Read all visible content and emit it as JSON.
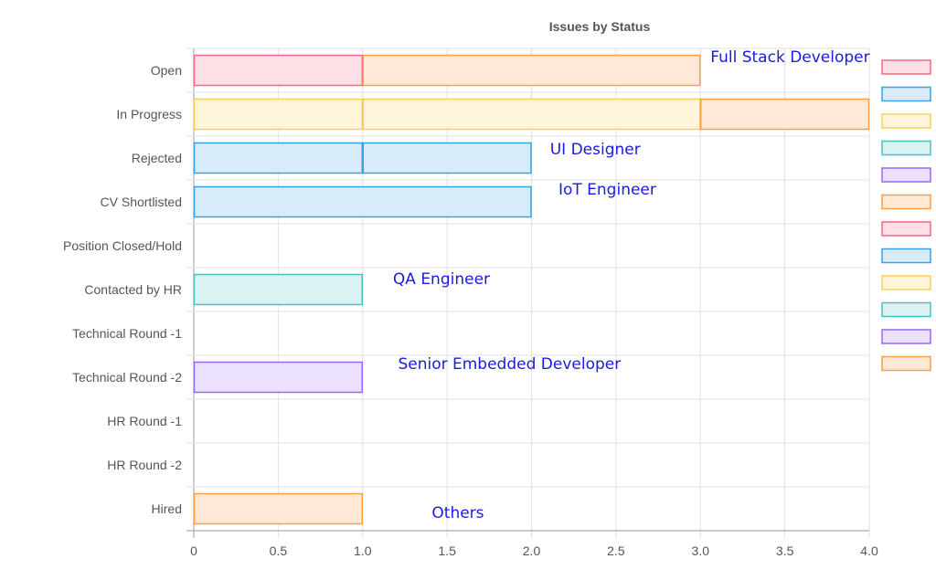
{
  "chart_data": {
    "type": "bar",
    "orientation": "horizontal",
    "stacked": true,
    "title": "Issues by Status",
    "categories": [
      "Open",
      "In Progress",
      "Rejected",
      "CV Shortlisted",
      "Position Closed/Hold",
      "Contacted by HR",
      "Technical Round -1",
      "Technical Round -2",
      "HR Round -1",
      "HR Round -2",
      "Hired"
    ],
    "x_ticks": [
      "0",
      "0.5",
      "1.0",
      "1.5",
      "2.0",
      "2.5",
      "3.0",
      "3.5",
      "4.0"
    ],
    "xlim": [
      0,
      4
    ],
    "grid": true,
    "legend_position": "right",
    "series": [
      {
        "fill": "#fde0e6",
        "stroke": "#ff6384",
        "values": [
          1,
          0,
          0,
          0,
          0,
          0,
          0,
          0,
          0,
          0,
          0
        ]
      },
      {
        "fill": "#d7ebf9",
        "stroke": "#36a2eb",
        "values": [
          0,
          0,
          1,
          2,
          0,
          0,
          0,
          0,
          0,
          0,
          0
        ]
      },
      {
        "fill": "#fff5db",
        "stroke": "#ffcd56",
        "values": [
          0,
          1,
          0,
          0,
          0,
          0,
          0,
          0,
          0,
          0,
          0
        ]
      },
      {
        "fill": "#dbf2f2",
        "stroke": "#4bc0c0",
        "values": [
          0,
          0,
          0,
          0,
          0,
          1,
          0,
          0,
          0,
          0,
          0
        ]
      },
      {
        "fill": "#ebe0ff",
        "stroke": "#9966ff",
        "values": [
          0,
          0,
          0,
          0,
          0,
          0,
          0,
          1,
          0,
          0,
          0
        ]
      },
      {
        "fill": "#ffe8d6",
        "stroke": "#ff9f40",
        "values": [
          0,
          0,
          0,
          0,
          0,
          0,
          0,
          0,
          0,
          0,
          1
        ]
      },
      {
        "fill": "#fde0e6",
        "stroke": "#ff6384",
        "values": [
          0,
          0,
          0,
          0,
          0,
          0,
          0,
          0,
          0,
          0,
          0
        ]
      },
      {
        "fill": "#d7ebf9",
        "stroke": "#36a2eb",
        "values": [
          0,
          0,
          1,
          0,
          0,
          0,
          0,
          0,
          0,
          0,
          0
        ]
      },
      {
        "fill": "#fff5db",
        "stroke": "#ffcd56",
        "values": [
          0,
          2,
          0,
          0,
          0,
          0,
          0,
          0,
          0,
          0,
          0
        ]
      },
      {
        "fill": "#dbf2f2",
        "stroke": "#4bc0c0",
        "values": [
          0,
          0,
          0,
          0,
          0,
          0,
          0,
          0,
          0,
          0,
          0
        ]
      },
      {
        "fill": "#ebe0ff",
        "stroke": "#9966ff",
        "values": [
          0,
          0,
          0,
          0,
          0,
          0,
          0,
          0,
          0,
          0,
          0
        ]
      },
      {
        "fill": "#ffe8d6",
        "stroke": "#ff9f40",
        "values": [
          2,
          1,
          0,
          0,
          0,
          0,
          0,
          0,
          0,
          0,
          0
        ]
      }
    ],
    "annotations": [
      {
        "text": "Full Stack Developer",
        "category": "Open",
        "x": 3.0,
        "dy": -9
      },
      {
        "text": "UI Designer",
        "category": "Rejected",
        "x": 2.05,
        "dy": -4
      },
      {
        "text": "IoT Engineer",
        "category": "CV Shortlisted",
        "x": 2.1,
        "dy": -8
      },
      {
        "text": "QA Engineer",
        "category": "Contacted by HR",
        "x": 1.12,
        "dy": -6
      },
      {
        "text": "Senior Embedded Developer",
        "category": "Technical Round -2",
        "x": 1.15,
        "dy": -9
      },
      {
        "text": "Others",
        "category": "Hired",
        "x": 1.35,
        "dy": 10
      }
    ],
    "annotation_color": "#1a1ae6"
  }
}
